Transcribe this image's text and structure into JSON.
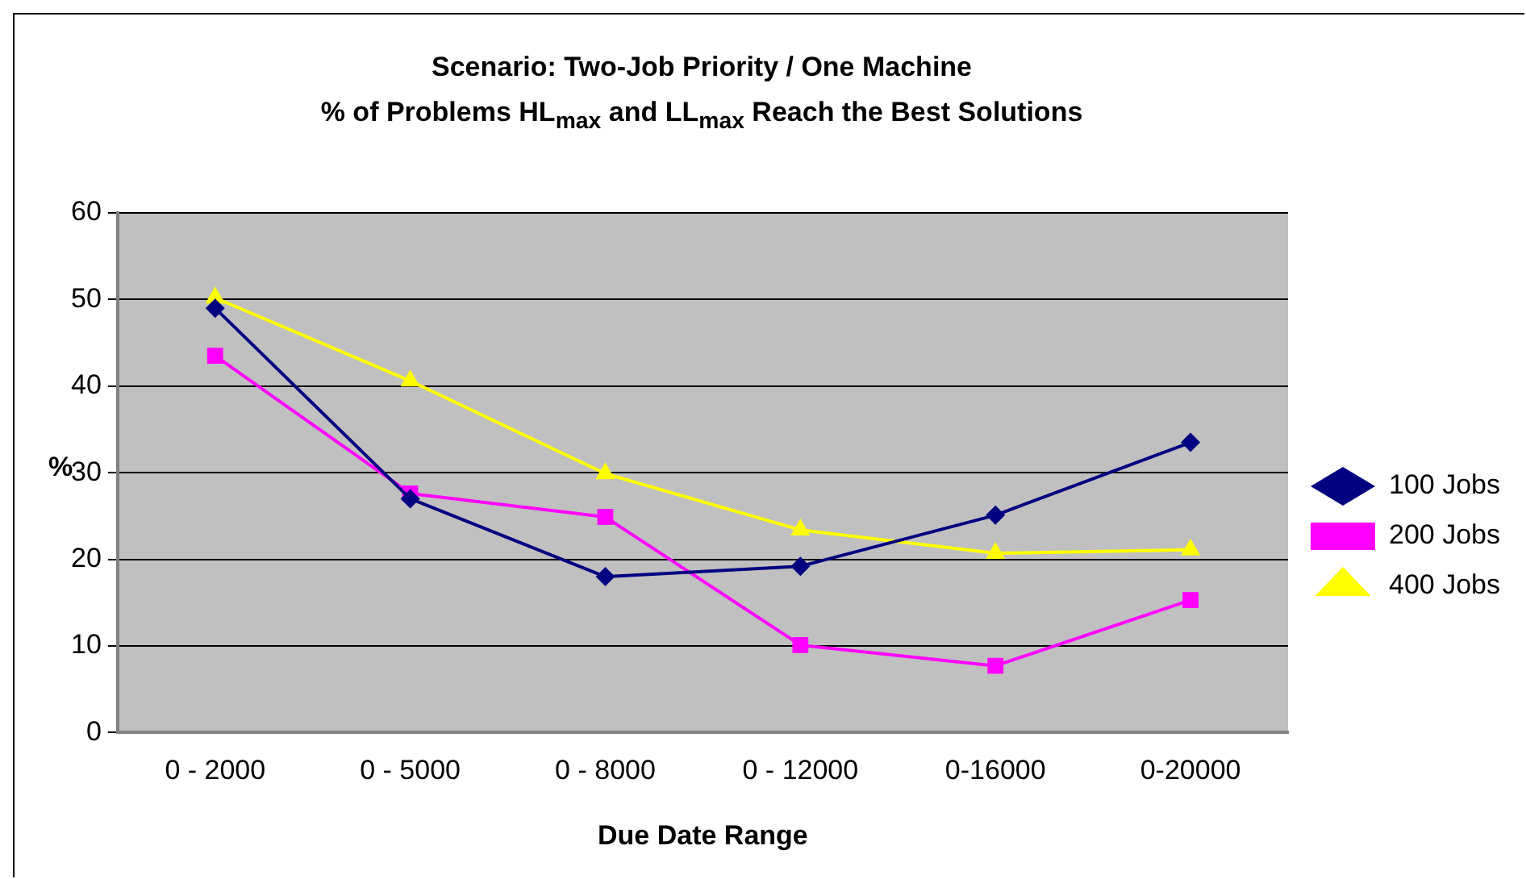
{
  "chart_data": {
    "type": "line",
    "title": "Scenario: Two-Job Priority / One Machine",
    "subtitle": "% of Problems HL$_{max}$ and LL$_{max}$ Reach the Best Solutions",
    "xlabel": "Due Date Range",
    "ylabel": "%",
    "categories": [
      "0 - 2000",
      "0 - 5000",
      "0 - 8000",
      "0 - 12000",
      "0-16000",
      "0-20000"
    ],
    "series": [
      {
        "name": "100 Jobs",
        "color": "#000080",
        "marker": "diamond",
        "values": [
          49,
          27,
          18,
          19.2,
          25.1,
          33.5
        ]
      },
      {
        "name": "200 Jobs",
        "color": "#ff00ff",
        "marker": "square",
        "values": [
          43.5,
          27.6,
          24.9,
          10.1,
          7.7,
          15.3
        ]
      },
      {
        "name": "400 Jobs",
        "color": "#ffff00",
        "marker": "triangle",
        "values": [
          50.2,
          40.6,
          29.9,
          23.4,
          20.7,
          21.1
        ]
      }
    ],
    "ylim": [
      0,
      60
    ],
    "yticks": [
      0,
      10,
      20,
      30,
      40,
      50,
      60
    ],
    "grid": "y",
    "legend": "right"
  }
}
